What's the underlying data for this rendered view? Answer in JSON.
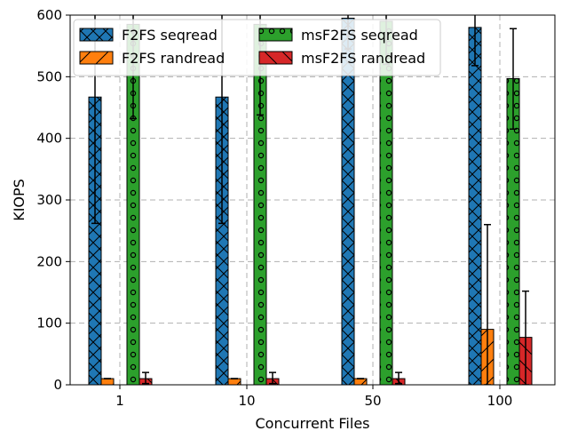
{
  "chart_data": {
    "type": "bar",
    "xlabel": "Concurrent Files",
    "ylabel": "KIOPS",
    "ylim": [
      0,
      600
    ],
    "yticks": [
      0,
      100,
      200,
      300,
      400,
      500,
      600
    ],
    "categories": [
      "1",
      "10",
      "50",
      "100"
    ],
    "grid": "dashed, both axes",
    "legend_position": "top-left, 2 columns",
    "series": [
      {
        "name": "F2FS seqread",
        "color": "#1f77b4",
        "hatch": "crosshatch-x",
        "values": [
          467,
          467,
          595,
          580
        ],
        "err_low": [
          262,
          262,
          545,
          518
        ],
        "err_high": [
          660,
          660,
          660,
          640
        ]
      },
      {
        "name": "F2FS randread",
        "color": "#ff7f0e",
        "hatch": "slash",
        "values": [
          10,
          10,
          10,
          90
        ],
        "err_low": [
          10,
          10,
          10,
          0
        ],
        "err_high": [
          10,
          10,
          10,
          260
        ]
      },
      {
        "name": "msF2FS seqread",
        "color": "#2ca02c",
        "hatch": "circles",
        "values": [
          585,
          585,
          590,
          497
        ],
        "err_low": [
          432,
          438,
          520,
          415
        ],
        "err_high": [
          660,
          660,
          660,
          578
        ]
      },
      {
        "name": "msF2FS randread",
        "color": "#d62728",
        "hatch": "backslash",
        "values": [
          10,
          10,
          10,
          77
        ],
        "err_low": [
          2,
          2,
          2,
          0
        ],
        "err_high": [
          20,
          20,
          20,
          152
        ]
      }
    ]
  }
}
